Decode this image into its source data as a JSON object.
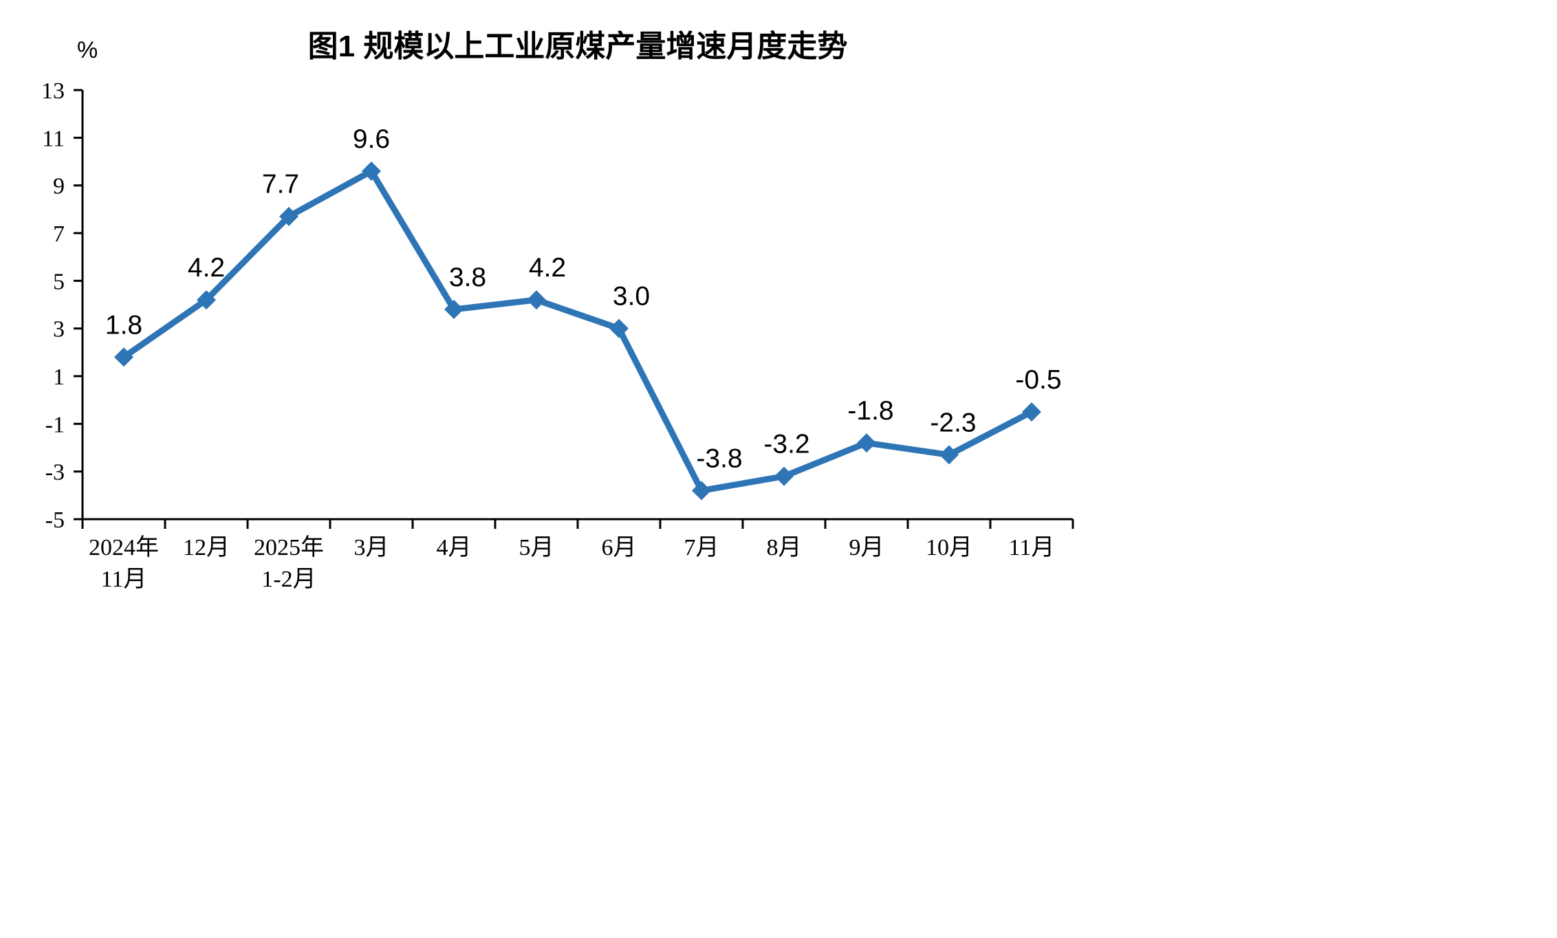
{
  "chart_data": {
    "type": "line",
    "title": "图1 规模以上工业原煤产量增速月度走势",
    "xlabel": "",
    "ylabel": "%",
    "ylim": [
      -5,
      13
    ],
    "yticks": [
      13,
      11,
      9,
      7,
      5,
      3,
      1,
      -1,
      -3,
      -5
    ],
    "categories": [
      [
        "2024年",
        "11月"
      ],
      [
        "12月"
      ],
      [
        "2025年",
        "1-2月"
      ],
      [
        "3月"
      ],
      [
        "4月"
      ],
      [
        "5月"
      ],
      [
        "6月"
      ],
      [
        "7月"
      ],
      [
        "8月"
      ],
      [
        "9月"
      ],
      [
        "10月"
      ],
      [
        "11月"
      ]
    ],
    "values": [
      1.8,
      4.2,
      7.7,
      9.6,
      3.8,
      4.2,
      3.0,
      -3.8,
      -3.2,
      -1.8,
      -2.3,
      -0.5
    ],
    "labels": [
      "1.8",
      "4.2",
      "7.7",
      "9.6",
      "3.8",
      "4.2",
      "3.0",
      "-3.8",
      "-3.2",
      "-1.8",
      "-2.3",
      "-0.5"
    ],
    "series_color": "#2E75B6",
    "axis_color": "#000000",
    "grid": false,
    "legend": null,
    "marker": "diamond"
  }
}
